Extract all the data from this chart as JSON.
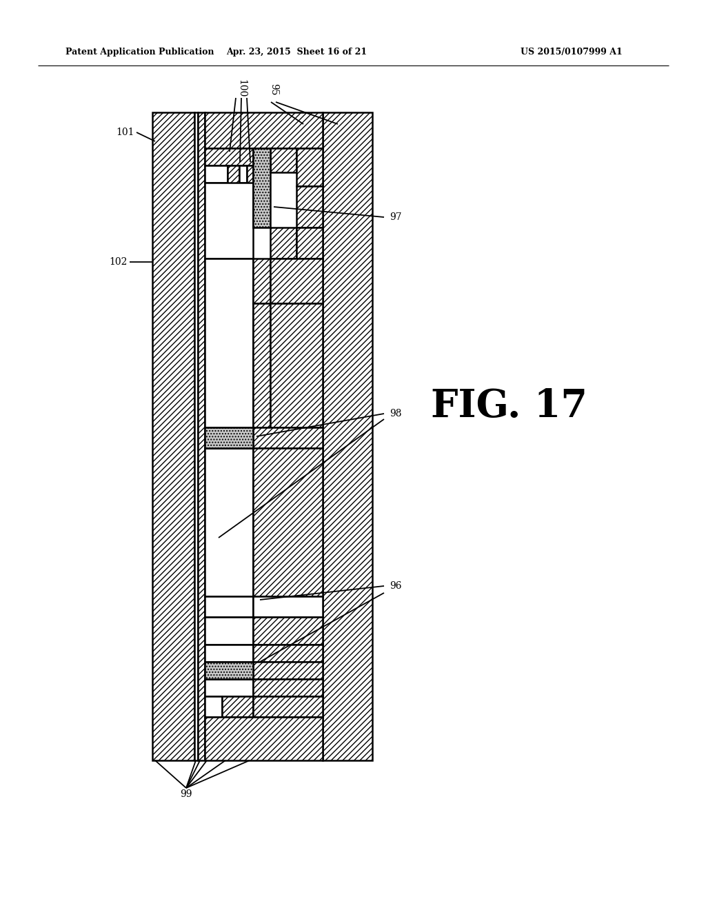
{
  "bg_color": "#ffffff",
  "header_left": "Patent Application Publication",
  "header_mid": "Apr. 23, 2015  Sheet 16 of 21",
  "header_right": "US 2015/0107999 A1",
  "fig_label": "FIG. 17",
  "line_width": 1.8
}
